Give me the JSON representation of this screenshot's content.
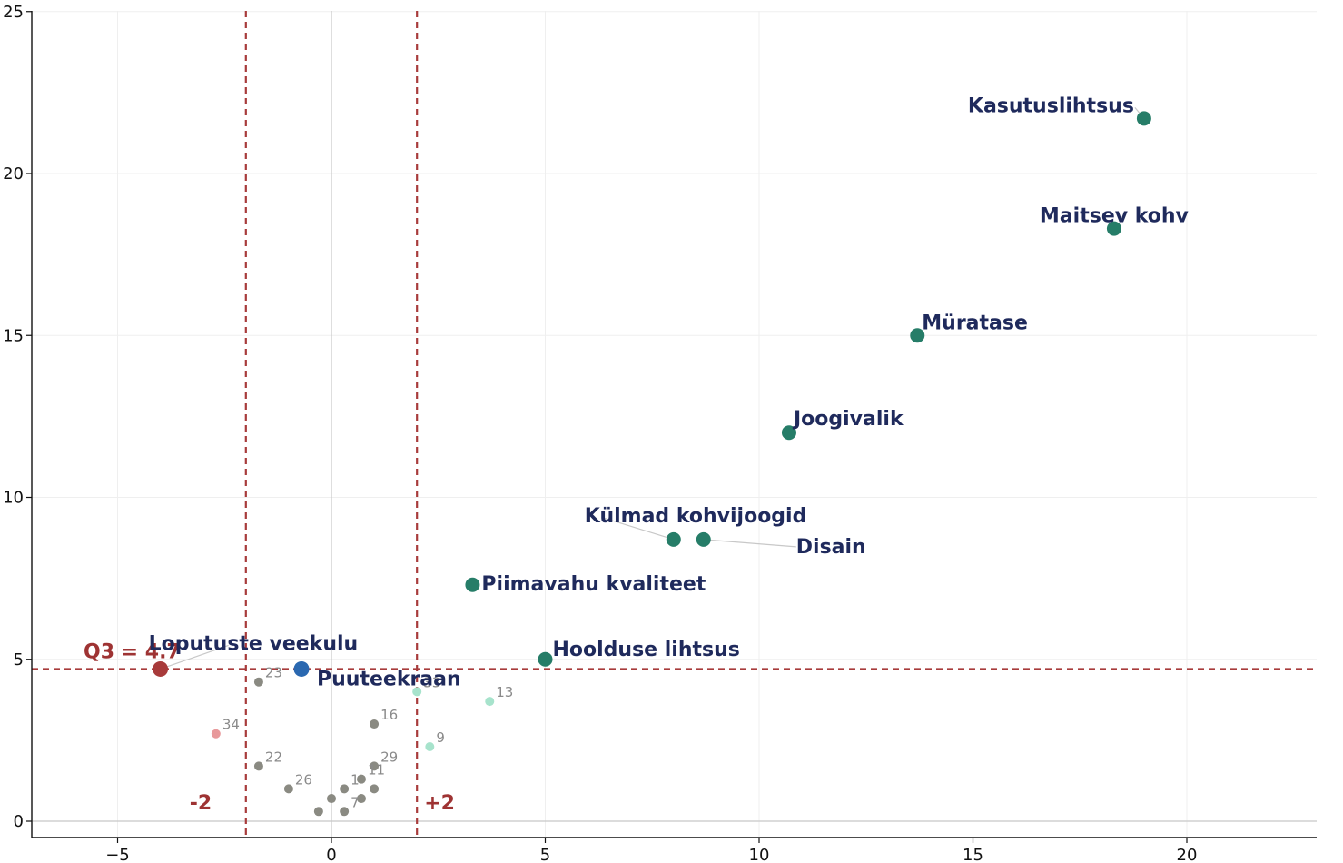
{
  "chart_data": {
    "type": "scatter",
    "title": "",
    "xlabel": "",
    "ylabel": "",
    "xlim": [
      -7,
      23
    ],
    "ylim": [
      -0.5,
      25
    ],
    "x_ticks": [
      -5,
      0,
      5,
      10,
      15,
      20
    ],
    "x_tick_labels": [
      "−5",
      "0",
      "5",
      "10",
      "15",
      "20"
    ],
    "y_ticks": [
      0,
      5,
      10,
      15,
      20,
      25
    ],
    "y_tick_labels": [
      "0",
      "5",
      "10",
      "15",
      "20",
      "25"
    ],
    "grid": true,
    "reference_lines": {
      "vertical": [
        {
          "x": -2,
          "label": "-2"
        },
        {
          "x": 2,
          "label": "+2"
        }
      ],
      "horizontal": [
        {
          "y": 4.7,
          "label": "Q3 = 4.7"
        }
      ],
      "zero_line_x": 0,
      "zero_line_y": 0
    },
    "colors": {
      "highlight": "#267d68",
      "neutral": "#8a8a82",
      "low_positive": "#a7e3cc",
      "low_negative": "#e8999b",
      "negative_highlight": "#a83b3b",
      "blue_highlight": "#2a68b0",
      "reference": "#a83b3b",
      "label": "#1f2a5c"
    },
    "labeled_points": [
      {
        "label": "Kasutuslihtsus",
        "x": 19.0,
        "y": 21.7,
        "color": "#267d68"
      },
      {
        "label": "Maitsev kohv",
        "x": 18.3,
        "y": 18.3,
        "color": "#267d68"
      },
      {
        "label": "Müratase",
        "x": 13.7,
        "y": 15.0,
        "color": "#267d68"
      },
      {
        "label": "Joogivalik",
        "x": 10.7,
        "y": 12.0,
        "color": "#267d68"
      },
      {
        "label": "Külmad kohvijoogid",
        "x": 8.0,
        "y": 8.7,
        "color": "#267d68"
      },
      {
        "label": "Disain",
        "x": 8.7,
        "y": 8.7,
        "color": "#267d68"
      },
      {
        "label": "Piimavahu kvaliteet",
        "x": 3.3,
        "y": 7.3,
        "color": "#267d68"
      },
      {
        "label": "Hoolduse lihtsus",
        "x": 5.0,
        "y": 5.0,
        "color": "#267d68"
      },
      {
        "label": "Loputuste veekulu",
        "x": -4.0,
        "y": 4.7,
        "color": "#a83b3b"
      },
      {
        "label": "Puuteekraan",
        "x": -0.7,
        "y": 4.7,
        "color": "#2a68b0"
      }
    ],
    "small_points": [
      {
        "label": "23",
        "x": -1.7,
        "y": 4.3,
        "color": "#8a8a82"
      },
      {
        "label": "33",
        "x": 2.0,
        "y": 4.0,
        "color": "#a7e3cc"
      },
      {
        "label": "13",
        "x": 3.7,
        "y": 3.7,
        "color": "#a7e3cc"
      },
      {
        "label": "16",
        "x": 1.0,
        "y": 3.0,
        "color": "#8a8a82"
      },
      {
        "label": "34",
        "x": -2.7,
        "y": 2.7,
        "color": "#e8999b"
      },
      {
        "label": "9",
        "x": 2.3,
        "y": 2.3,
        "color": "#a7e3cc"
      },
      {
        "label": "22",
        "x": -1.7,
        "y": 1.7,
        "color": "#8a8a82"
      },
      {
        "label": "29",
        "x": 1.0,
        "y": 1.7,
        "color": "#8a8a82"
      },
      {
        "label": "11",
        "x": 0.7,
        "y": 1.3,
        "color": "#8a8a82"
      },
      {
        "label": "1",
        "x": 0.3,
        "y": 1.0,
        "color": "#8a8a82"
      },
      {
        "label": "26",
        "x": -1.0,
        "y": 1.0,
        "color": "#8a8a82"
      },
      {
        "label": "7",
        "x": 0.3,
        "y": 0.3,
        "color": "#8a8a82"
      }
    ],
    "unlabeled_points": [
      {
        "x": 1.0,
        "y": 1.0,
        "color": "#8a8a82"
      },
      {
        "x": 0.7,
        "y": 0.7,
        "color": "#8a8a82"
      },
      {
        "x": 0.0,
        "y": 0.7,
        "color": "#8a8a82"
      },
      {
        "x": -0.3,
        "y": 0.3,
        "color": "#8a8a82"
      }
    ]
  }
}
